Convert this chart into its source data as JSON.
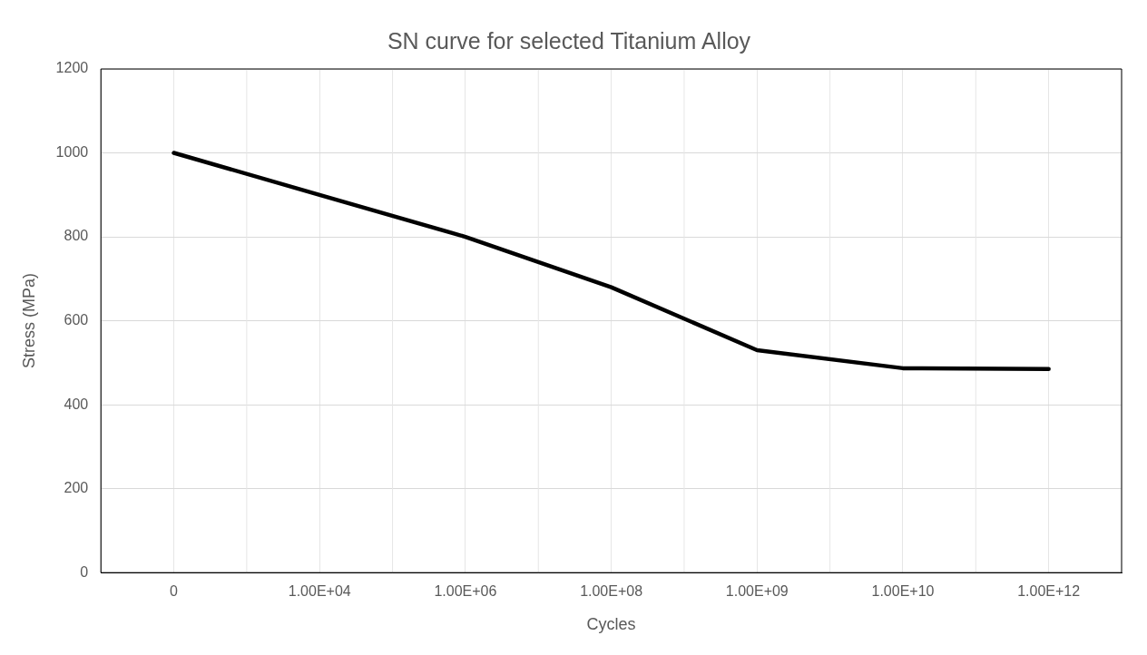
{
  "chart_data": {
    "type": "line",
    "title": "SN curve for selected Titanium Alloy",
    "xlabel": "Cycles",
    "ylabel": "Stress (MPa)",
    "categories": [
      "0",
      "1.00E+04",
      "1.00E+06",
      "1.00E+08",
      "1.00E+09",
      "1.00E+10",
      "1.00E+12"
    ],
    "series": [
      {
        "color": "#000000",
        "values": [
          1000,
          900,
          800,
          680,
          530,
          487,
          485
        ]
      }
    ],
    "ylim": [
      0,
      1200
    ],
    "yticks": [
      0,
      200,
      400,
      600,
      800,
      1000,
      1200
    ],
    "grid": true,
    "legend": false,
    "marker": "none",
    "line_style": "solid"
  }
}
